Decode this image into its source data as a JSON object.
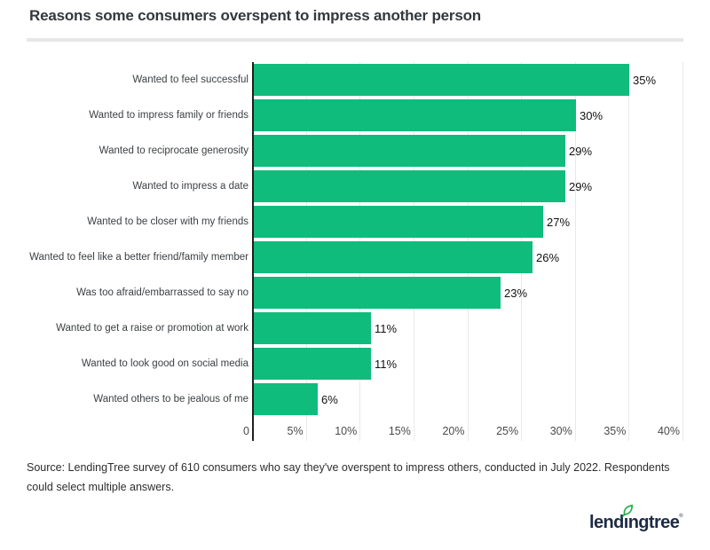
{
  "title": "Reasons some consumers overspent to impress another person",
  "chart_data": {
    "type": "bar",
    "orientation": "horizontal",
    "title": "Reasons some consumers overspent to impress another person",
    "categories": [
      "Wanted to feel successful",
      "Wanted to impress family or friends",
      "Wanted to reciprocate generosity",
      "Wanted to impress a date",
      "Wanted to be closer with my friends",
      "Wanted to feel like a better friend/family member",
      "Was too afraid/embarrassed to say no",
      "Wanted to get a raise or promotion at work",
      "Wanted to look good on social media",
      "Wanted others to be jealous of me"
    ],
    "values": [
      35,
      30,
      29,
      29,
      27,
      26,
      23,
      11,
      11,
      6
    ],
    "value_labels": [
      "35%",
      "30%",
      "29%",
      "29%",
      "27%",
      "26%",
      "23%",
      "11%",
      "11%",
      "6%"
    ],
    "xlabel": "",
    "ylabel": "",
    "xlim": [
      0,
      40
    ],
    "x_ticks": [
      {
        "value": 0,
        "label": "0"
      },
      {
        "value": 5,
        "label": "5%"
      },
      {
        "value": 10,
        "label": "10%"
      },
      {
        "value": 15,
        "label": "15%"
      },
      {
        "value": 20,
        "label": "20%"
      },
      {
        "value": 25,
        "label": "25%"
      },
      {
        "value": 30,
        "label": "30%"
      },
      {
        "value": 35,
        "label": "35%"
      },
      {
        "value": 40,
        "label": "40%"
      }
    ],
    "grid": true,
    "legend": "none",
    "bar_color": "#0fbc7c"
  },
  "colors": {
    "bar": "#0fbc7c",
    "axis": "#1f1f1f",
    "gridline": "#e9e9e9",
    "title_text": "#33383d",
    "logo_navy": "#1e2b45",
    "leaf_green": "#23b24b"
  },
  "source_note": "Source: LendingTree survey of 610 consumers who say they've overspent to impress others, conducted in July 2022. Respondents could select multiple answers.",
  "logo": {
    "brand": "lendingtree",
    "text_before_leaf": "lend",
    "leaf_letter": "ı",
    "text_after_leaf": "ngtree",
    "registered": "®"
  }
}
